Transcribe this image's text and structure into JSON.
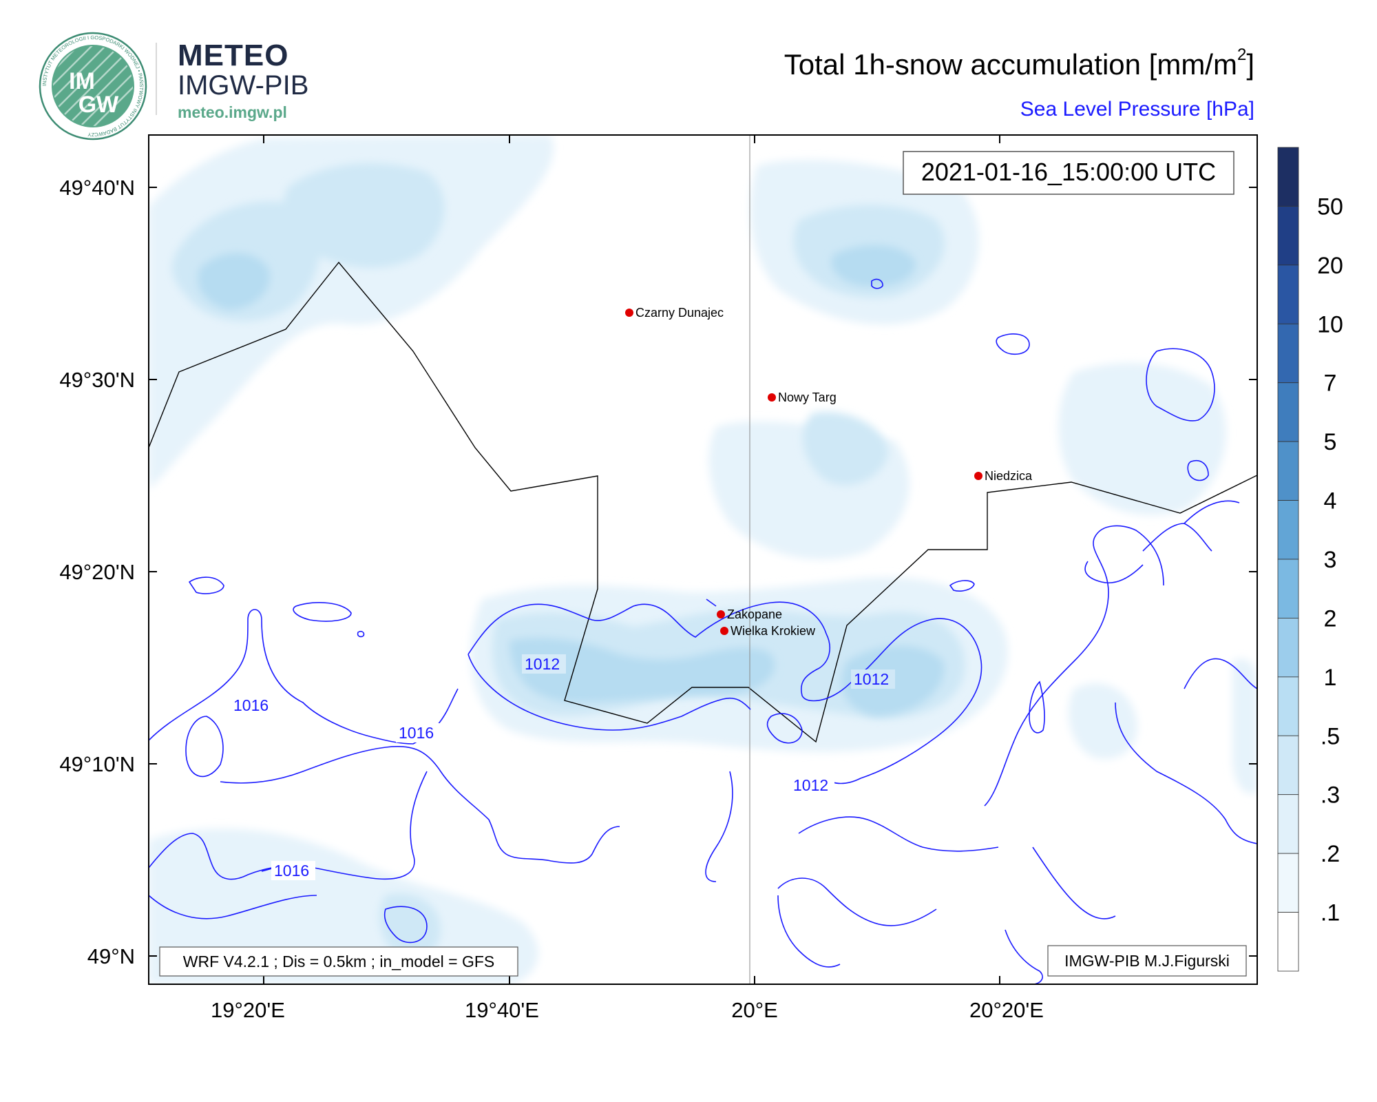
{
  "brand": {
    "logo_text_top": "IM",
    "logo_text_bottom": "GW",
    "logo_ring_text": "INSTYTUT METEOROLOGII I GOSPODARKI WODNEJ • PAŃSTWOWY INSTYTUT BADAWCZY",
    "name": "METEO",
    "sub": "IMGW-PIB",
    "url": "meteo.imgw.pl",
    "color_dark": "#1f2a44",
    "color_green": "#5aa88a"
  },
  "title": {
    "main": "Total 1h-snow accumulation [mm/m",
    "main_sup": "2",
    "main_end": "]",
    "sub": "Sea Level Pressure [hPa]",
    "sub_color": "#1a1aff"
  },
  "timestamp": "2021-01-16_15:00:00 UTC",
  "footer_left": "WRF V4.2.1 ; Dis = 0.5km ; in_model = GFS",
  "footer_right": "IMGW-PIB M.J.Figurski",
  "axes": {
    "lat_ticks": [
      "49°40'N",
      "49°30'N",
      "49°20'N",
      "49°10'N",
      "49°N"
    ],
    "lon_ticks": [
      "19°20'E",
      "19°40'E",
      "20°E",
      "20°20'E"
    ]
  },
  "cities": [
    {
      "name": "Czarny Dunajec"
    },
    {
      "name": "Nowy Targ"
    },
    {
      "name": "Niedzica"
    },
    {
      "name": "Zakopane"
    },
    {
      "name": "Wielka Krokiew"
    }
  ],
  "isobars": [
    "1012",
    "1012",
    "1012",
    "1016",
    "1016",
    "1016"
  ],
  "colorbar": {
    "labels": [
      "50",
      "20",
      "10",
      "7",
      "5",
      "4",
      "3",
      "2",
      "1",
      ".5",
      ".3",
      ".2",
      ".1"
    ],
    "colors": [
      "#1d2f63",
      "#203f86",
      "#2a56a3",
      "#3368b0",
      "#3f7dbd",
      "#4f91c9",
      "#62a5d6",
      "#7bb9e2",
      "#9ccdec",
      "#b9def3",
      "#cfe8f7",
      "#e1f1fa",
      "#eff8fd",
      "#ffffff"
    ]
  },
  "colors": {
    "snow_light": "#e6f3fb",
    "snow_mid": "#cfe8f6",
    "snow_dark": "#b6dcf1",
    "isobar": "#1a1aff",
    "city_dot": "#e00000"
  }
}
